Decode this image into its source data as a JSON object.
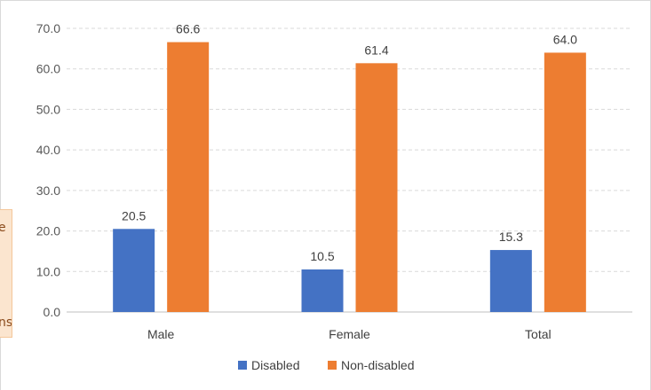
{
  "side_note": {
    "line1": "e",
    "line2": "ns"
  },
  "chart_data": {
    "type": "bar",
    "title": "",
    "xlabel": "",
    "ylabel": "",
    "categories": [
      "Male",
      "Female",
      "Total"
    ],
    "series": [
      {
        "name": "Disabled",
        "values": [
          20.5,
          10.5,
          15.3
        ],
        "color": "#4472c4"
      },
      {
        "name": "Non-disabled",
        "values": [
          66.6,
          61.4,
          64.0
        ],
        "color": "#ed7d31"
      }
    ],
    "ylim": [
      0,
      70
    ],
    "ytick_step": 10,
    "ytick_labels": [
      "0.0",
      "10.0",
      "20.0",
      "30.0",
      "40.0",
      "50.0",
      "60.0",
      "70.0"
    ],
    "data_labels": [
      [
        "20.5",
        "10.5",
        "15.3"
      ],
      [
        "66.6",
        "61.4",
        "64.0"
      ]
    ],
    "grid": true,
    "legend": "bottom"
  }
}
